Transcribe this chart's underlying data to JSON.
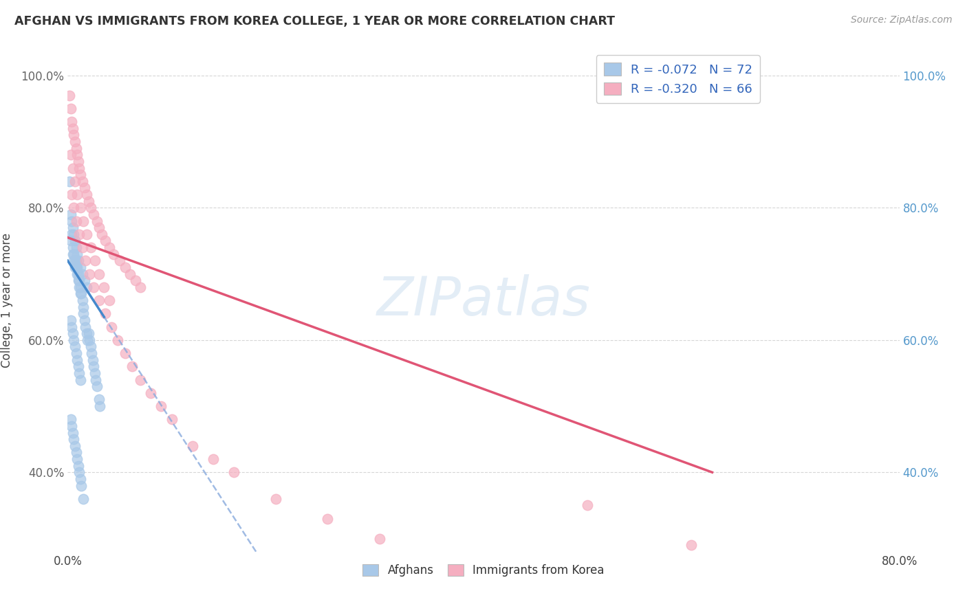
{
  "title": "AFGHAN VS IMMIGRANTS FROM KOREA COLLEGE, 1 YEAR OR MORE CORRELATION CHART",
  "source": "Source: ZipAtlas.com",
  "ylabel": "College, 1 year or more",
  "xlim": [
    0.0,
    0.8
  ],
  "ylim": [
    0.28,
    1.04
  ],
  "legend_r1": "-0.072",
  "legend_n1": "72",
  "legend_r2": "-0.320",
  "legend_n2": "66",
  "blue_color": "#a8c8e8",
  "pink_color": "#f5aec0",
  "blue_line_color": "#4488cc",
  "pink_line_color": "#e05575",
  "blue_dash_color": "#88aadd",
  "watermark_text": "ZIPatlas",
  "afghans_x": [
    0.002,
    0.003,
    0.004,
    0.005,
    0.005,
    0.006,
    0.006,
    0.007,
    0.007,
    0.008,
    0.008,
    0.009,
    0.009,
    0.01,
    0.01,
    0.011,
    0.011,
    0.012,
    0.012,
    0.013,
    0.014,
    0.015,
    0.015,
    0.016,
    0.017,
    0.018,
    0.019,
    0.02,
    0.021,
    0.022,
    0.023,
    0.024,
    0.025,
    0.026,
    0.027,
    0.028,
    0.03,
    0.031,
    0.003,
    0.004,
    0.005,
    0.006,
    0.007,
    0.008,
    0.009,
    0.01,
    0.012,
    0.014,
    0.016,
    0.018,
    0.003,
    0.004,
    0.005,
    0.006,
    0.007,
    0.008,
    0.009,
    0.01,
    0.011,
    0.012,
    0.003,
    0.004,
    0.005,
    0.006,
    0.007,
    0.008,
    0.009,
    0.01,
    0.011,
    0.012,
    0.013,
    0.015
  ],
  "afghans_y": [
    0.84,
    0.75,
    0.76,
    0.74,
    0.73,
    0.73,
    0.72,
    0.72,
    0.71,
    0.72,
    0.71,
    0.71,
    0.7,
    0.7,
    0.69,
    0.69,
    0.68,
    0.68,
    0.67,
    0.67,
    0.66,
    0.65,
    0.64,
    0.63,
    0.62,
    0.61,
    0.6,
    0.61,
    0.6,
    0.59,
    0.58,
    0.57,
    0.56,
    0.55,
    0.54,
    0.53,
    0.51,
    0.5,
    0.79,
    0.78,
    0.77,
    0.76,
    0.75,
    0.74,
    0.73,
    0.72,
    0.71,
    0.7,
    0.69,
    0.68,
    0.63,
    0.62,
    0.61,
    0.6,
    0.59,
    0.58,
    0.57,
    0.56,
    0.55,
    0.54,
    0.48,
    0.47,
    0.46,
    0.45,
    0.44,
    0.43,
    0.42,
    0.41,
    0.4,
    0.39,
    0.38,
    0.36
  ],
  "korea_x": [
    0.002,
    0.003,
    0.004,
    0.005,
    0.006,
    0.007,
    0.008,
    0.009,
    0.01,
    0.011,
    0.012,
    0.014,
    0.016,
    0.018,
    0.02,
    0.022,
    0.025,
    0.028,
    0.03,
    0.033,
    0.036,
    0.04,
    0.044,
    0.05,
    0.055,
    0.06,
    0.065,
    0.07,
    0.003,
    0.005,
    0.007,
    0.009,
    0.012,
    0.015,
    0.018,
    0.022,
    0.026,
    0.03,
    0.035,
    0.04,
    0.004,
    0.006,
    0.008,
    0.011,
    0.014,
    0.017,
    0.021,
    0.025,
    0.03,
    0.036,
    0.042,
    0.048,
    0.055,
    0.062,
    0.07,
    0.08,
    0.09,
    0.1,
    0.12,
    0.14,
    0.16,
    0.2,
    0.25,
    0.3,
    0.5,
    0.6
  ],
  "korea_y": [
    0.97,
    0.95,
    0.93,
    0.92,
    0.91,
    0.9,
    0.89,
    0.88,
    0.87,
    0.86,
    0.85,
    0.84,
    0.83,
    0.82,
    0.81,
    0.8,
    0.79,
    0.78,
    0.77,
    0.76,
    0.75,
    0.74,
    0.73,
    0.72,
    0.71,
    0.7,
    0.69,
    0.68,
    0.88,
    0.86,
    0.84,
    0.82,
    0.8,
    0.78,
    0.76,
    0.74,
    0.72,
    0.7,
    0.68,
    0.66,
    0.82,
    0.8,
    0.78,
    0.76,
    0.74,
    0.72,
    0.7,
    0.68,
    0.66,
    0.64,
    0.62,
    0.6,
    0.58,
    0.56,
    0.54,
    0.52,
    0.5,
    0.48,
    0.44,
    0.42,
    0.4,
    0.36,
    0.33,
    0.3,
    0.35,
    0.29
  ]
}
